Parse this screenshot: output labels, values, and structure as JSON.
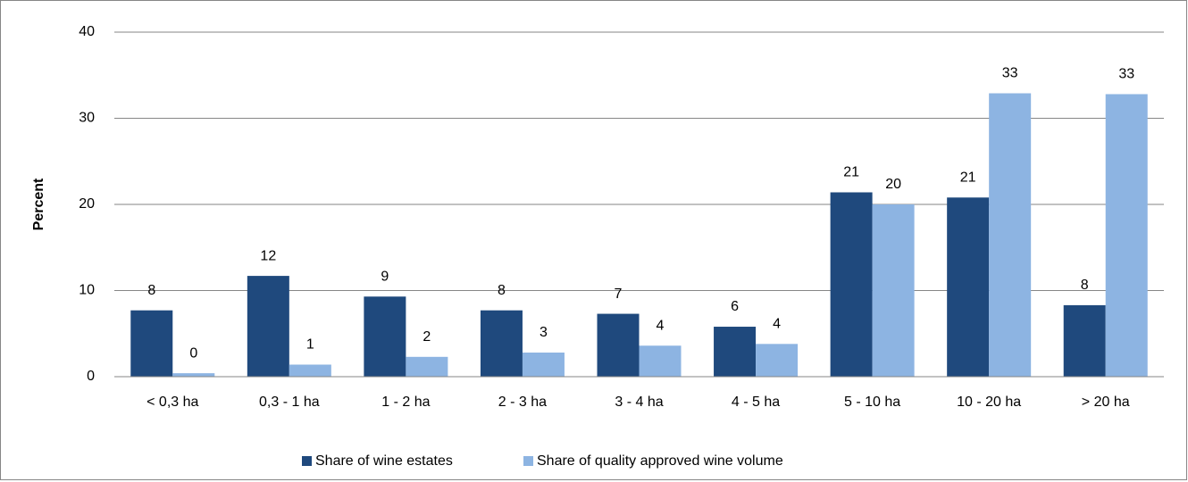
{
  "chart_data": {
    "type": "bar",
    "y_label": "Percent",
    "categories": [
      "< 0,3 ha",
      "0,3 - 1 ha",
      "1 - 2 ha",
      "2 - 3 ha",
      "3 - 4 ha",
      "4 - 5 ha",
      "5 - 10 ha",
      "10 - 20 ha",
      "> 20 ha"
    ],
    "series": [
      {
        "name": "Share of wine estates",
        "color": "#1f497d",
        "values": [
          7.7,
          11.7,
          9.3,
          7.7,
          7.3,
          5.8,
          21.4,
          20.8,
          8.3
        ],
        "value_labels": [
          "8",
          "12",
          "9",
          "8",
          "7",
          "6",
          "21",
          "21",
          "8"
        ]
      },
      {
        "name": "Share of quality approved wine volume",
        "color": "#8db4e2",
        "values": [
          0.4,
          1.4,
          2.3,
          2.8,
          3.6,
          3.8,
          20.0,
          32.9,
          32.8
        ],
        "value_labels": [
          "0",
          "1",
          "2",
          "3",
          "4",
          "4",
          "20",
          "33",
          "33"
        ]
      }
    ],
    "ylim": [
      0,
      40
    ],
    "yticks": [
      0,
      10,
      20,
      30,
      40
    ],
    "grid": true,
    "legend": "bottom"
  }
}
